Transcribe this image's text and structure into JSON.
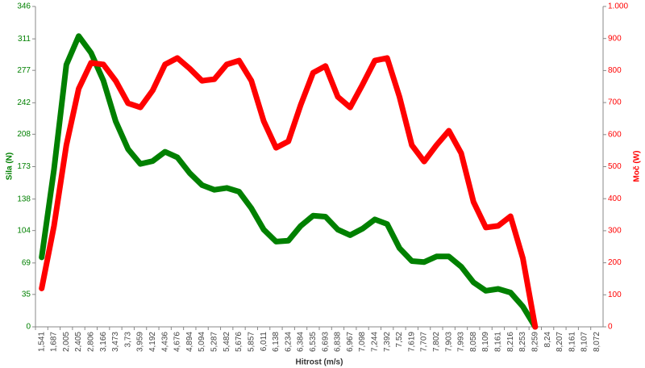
{
  "chart_data": {
    "type": "line",
    "xlabel": "Hitrost (m/s)",
    "ylabel": "Sila (N)",
    "y2label": "Moč (W)",
    "categories": [
      "1,541",
      "1,687",
      "2,005",
      "2,405",
      "2,806",
      "3,166",
      "3,473",
      "3,73",
      "3,959",
      "4,192",
      "4,436",
      "4,676",
      "4,894",
      "5,094",
      "5,287",
      "5,482",
      "5,676",
      "5,857",
      "6,011",
      "6,138",
      "6,234",
      "6,384",
      "6,535",
      "6,693",
      "6,838",
      "6,967",
      "7,098",
      "7,244",
      "7,392",
      "7,52",
      "7,619",
      "7,707",
      "7,802",
      "7,903",
      "7,993",
      "8,058",
      "8,109",
      "8,161",
      "8,216",
      "8,253",
      "8,259",
      "8,24",
      "8,207",
      "8,161",
      "8,107",
      "8,072"
    ],
    "series": [
      {
        "name": "Sila (N)",
        "color": "#008000",
        "axis": "y",
        "values": [
          75,
          170,
          283,
          314,
          296,
          266,
          222,
          192,
          176,
          179,
          189,
          183,
          166,
          153,
          148,
          150,
          146,
          128,
          105,
          92,
          93,
          109,
          120,
          119,
          105,
          99,
          106,
          116,
          111,
          85,
          71,
          70,
          76,
          76,
          65,
          48,
          39,
          41,
          37,
          22,
          0,
          null,
          null,
          null,
          null,
          null
        ]
      },
      {
        "name": "Moč (W)",
        "color": "#ff0000",
        "axis": "y2",
        "values": [
          120,
          315,
          567,
          743,
          824,
          819,
          768,
          698,
          685,
          738,
          819,
          839,
          806,
          768,
          773,
          819,
          831,
          768,
          642,
          559,
          579,
          693,
          793,
          814,
          718,
          685,
          756,
          831,
          839,
          718,
          567,
          516,
          567,
          612,
          542,
          390,
          310,
          315,
          345,
          214,
          0,
          null,
          null,
          null,
          null,
          null
        ]
      }
    ],
    "ylim": [
      0,
      346
    ],
    "yticks": [
      0,
      35,
      69,
      104,
      138,
      173,
      208,
      242,
      277,
      311,
      346
    ],
    "y2lim": [
      0,
      1000
    ],
    "y2ticks": [
      0,
      100,
      200,
      300,
      400,
      500,
      600,
      700,
      800,
      900,
      {
        "value": 1000,
        "label": "1.000"
      }
    ],
    "grid": false
  }
}
